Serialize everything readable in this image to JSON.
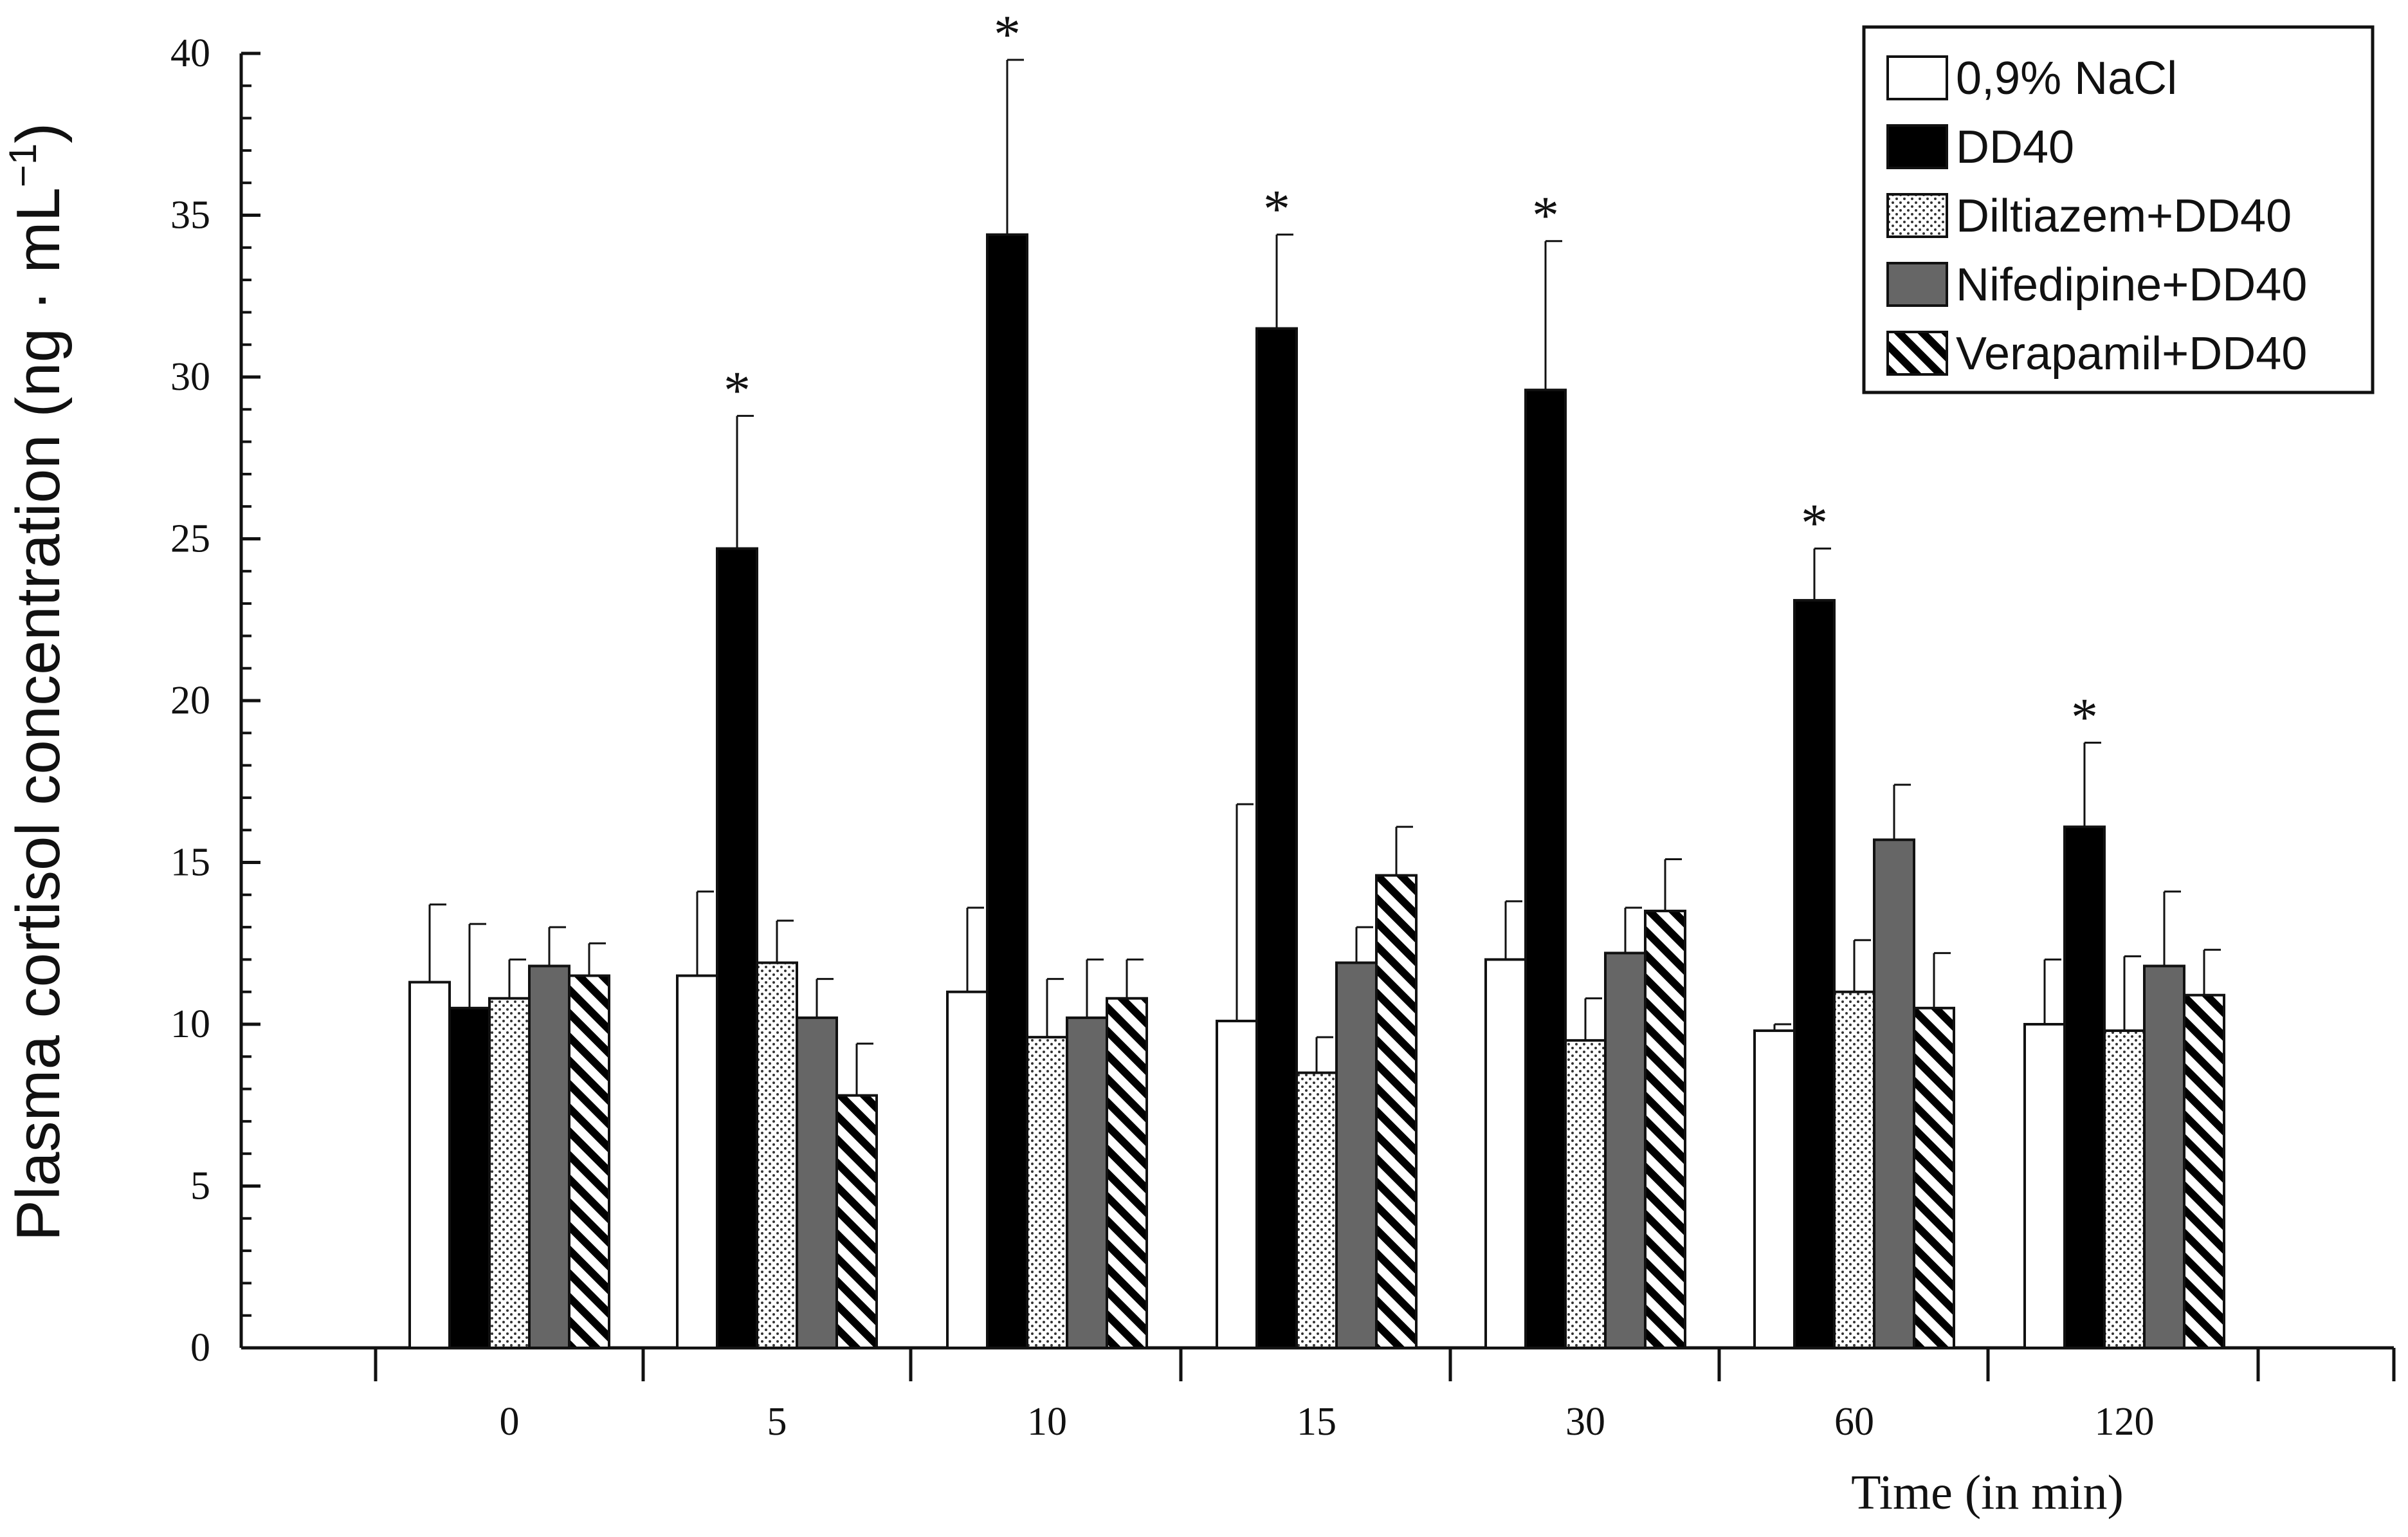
{
  "chart_data": {
    "type": "bar",
    "title": "",
    "xlabel": "Time (in min)",
    "ylabel": "Plasma cortisol concentration (ng · mL",
    "ylabel_sup": "−1",
    "ylabel_close": ")",
    "ylim": [
      0,
      40
    ],
    "yticks": [
      "0",
      "5",
      "10",
      "15",
      "20",
      "25",
      "30",
      "35",
      "40"
    ],
    "categories": [
      "0",
      "5",
      "10",
      "15",
      "30",
      "60",
      "120"
    ],
    "legend_position": "top-right",
    "series": [
      {
        "name": "0,9% NaCl",
        "pattern": "white",
        "values": [
          11.3,
          11.5,
          11.0,
          10.1,
          12.0,
          9.8,
          10.0
        ],
        "errors": [
          2.4,
          2.6,
          2.6,
          6.7,
          1.8,
          0.2,
          2.0
        ]
      },
      {
        "name": "DD40",
        "pattern": "black",
        "values": [
          10.5,
          24.7,
          34.4,
          31.5,
          29.6,
          23.1,
          16.1
        ],
        "errors": [
          2.6,
          4.1,
          5.4,
          2.9,
          4.6,
          1.6,
          2.6
        ]
      },
      {
        "name": "Diltiazem+DD40",
        "pattern": "dotted",
        "values": [
          10.8,
          11.9,
          9.6,
          8.5,
          9.5,
          11.0,
          9.8
        ],
        "errors": [
          1.2,
          1.3,
          1.8,
          1.1,
          1.3,
          1.6,
          2.3
        ]
      },
      {
        "name": "Nifedipine+DD40",
        "pattern": "gray",
        "values": [
          11.8,
          10.2,
          10.2,
          11.9,
          12.2,
          15.7,
          11.8
        ],
        "errors": [
          1.2,
          1.2,
          1.8,
          1.1,
          1.4,
          1.7,
          2.3
        ]
      },
      {
        "name": "Verapamil+DD40",
        "pattern": "hatched",
        "values": [
          11.5,
          7.8,
          10.8,
          14.6,
          13.5,
          10.5,
          10.9
        ],
        "errors": [
          1.0,
          1.6,
          1.2,
          1.5,
          1.6,
          1.7,
          1.4
        ]
      }
    ],
    "significance_marker": "*",
    "significance": [
      {
        "series": "DD40",
        "categories": [
          "5",
          "10",
          "15",
          "30",
          "60",
          "120"
        ]
      }
    ]
  },
  "colors": {
    "white_fill": "#ffffff",
    "black_fill": "#000000",
    "gray_fill": "#666666",
    "dot_color": "#333333",
    "axis": "#111111"
  }
}
